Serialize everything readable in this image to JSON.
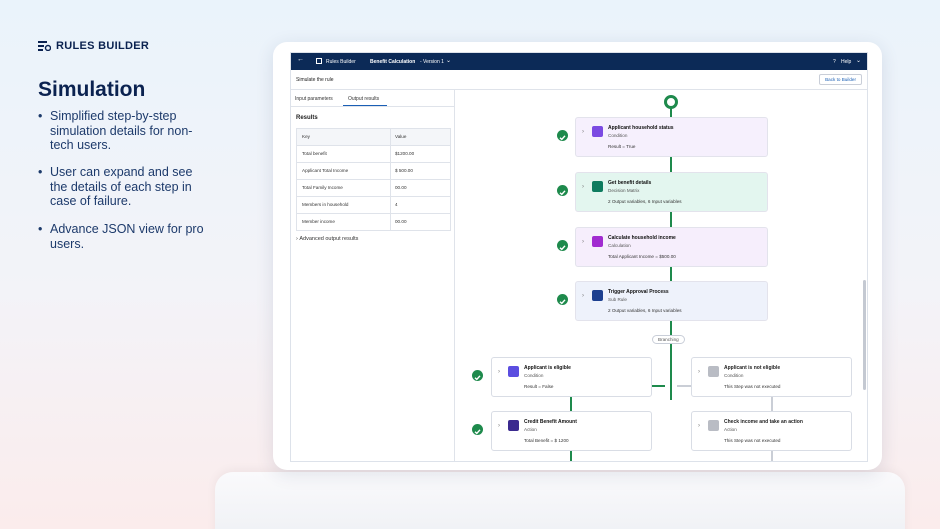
{
  "brand": "RULES BUILDER",
  "heading": "Simulation",
  "bullets": [
    "Simplified step-by-step simulation details for non-tech users.",
    "User can expand and see the details of each step in case of failure.",
    "Advance JSON view for pro users."
  ],
  "app": {
    "nav": {
      "app_name": "Rules Builder",
      "rule_name": "Benefit Calculation",
      "version": "- Version 1",
      "help": "Help"
    },
    "subheader": {
      "title": "Simulate the rule",
      "button": "Back to Builder"
    },
    "tabs": [
      "Input parameters",
      "Output results"
    ],
    "results": {
      "title": "Results",
      "header": [
        "Key",
        "Value"
      ],
      "rows": [
        [
          "Total benefit",
          "$1200.00"
        ],
        [
          "Applicant Total Income",
          "$ 500.00"
        ],
        [
          "Total Family Income",
          "00.00"
        ],
        [
          "Members in household",
          "4"
        ],
        [
          "Member income",
          "00.00"
        ]
      ]
    },
    "advanced": "Advanced output results",
    "nodes": [
      {
        "title": "Applicant household status",
        "type": "Condition",
        "detail": "Result = True"
      },
      {
        "title": "Get benefit details",
        "type": "Decision Matrix",
        "detail": "2 Output variables, 6 Input variables"
      },
      {
        "title": "Calculate household income",
        "type": "Calculation",
        "detail": "Total Applicant Income = $500.00"
      },
      {
        "title": "Trigger Approval Process",
        "type": "Sub Rule",
        "detail": "2 Output variables, 6 Input variables"
      }
    ],
    "branch_label": "Branching",
    "branches": [
      {
        "title": "Applicant is eligible",
        "type": "Condition",
        "detail": "Result = False"
      },
      {
        "title": "Applicant is not eligible",
        "type": "Condition",
        "detail": "This Step was not executed"
      },
      {
        "title": "Credit Benefit Amount",
        "type": "Action",
        "detail": "Total Benefit = $ 1200"
      },
      {
        "title": "Check income and take an action",
        "type": "Action",
        "detail": "This Step was not executed"
      }
    ]
  }
}
